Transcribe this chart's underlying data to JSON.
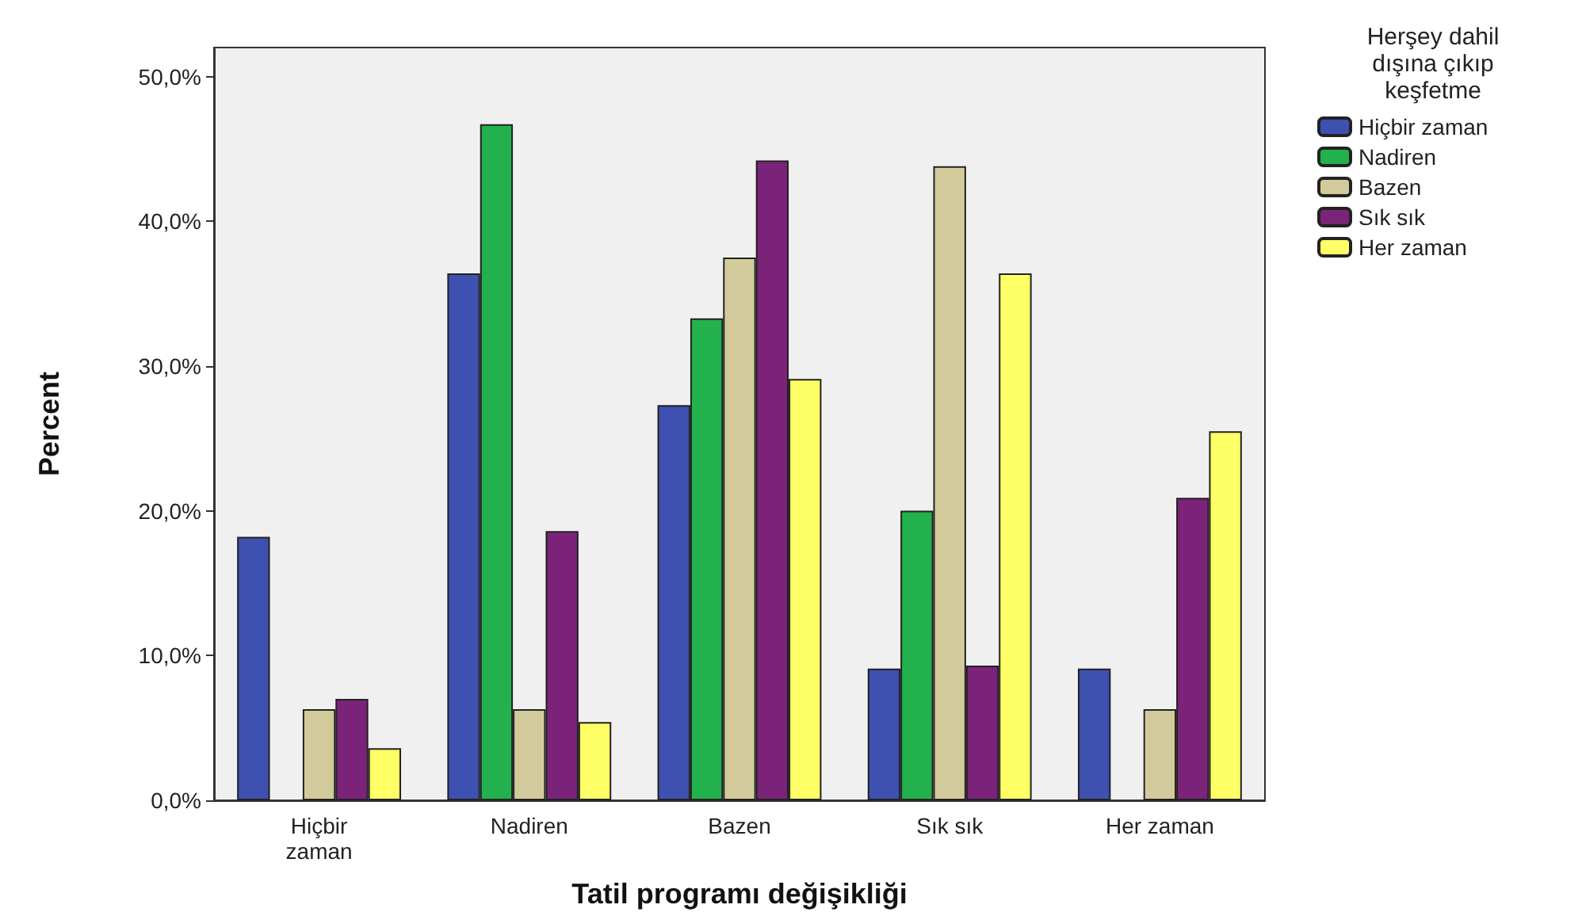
{
  "chart_data": {
    "type": "bar",
    "xlabel": "Tatil programı değişikliği",
    "ylabel": "Percent",
    "legend_title": "Herşey dahil\ndışına çıkıp\nkeşfetme",
    "categories": [
      "Hiçbir\nzaman",
      "Nadiren",
      "Bazen",
      "Sık sık",
      "Her zaman"
    ],
    "series": [
      {
        "name": "Hiçbir zaman",
        "color": "#3e51b0",
        "values": [
          18.2,
          36.4,
          27.3,
          9.1,
          9.1
        ]
      },
      {
        "name": "Nadiren",
        "color": "#22b14c",
        "values": [
          null,
          46.7,
          33.3,
          20.0,
          null
        ]
      },
      {
        "name": "Bazen",
        "color": "#d3ca9c",
        "values": [
          6.3,
          6.3,
          37.5,
          43.8,
          6.3
        ]
      },
      {
        "name": "Sık sık",
        "color": "#7b2378",
        "values": [
          7.0,
          18.6,
          44.2,
          9.3,
          20.9
        ]
      },
      {
        "name": "Her zaman",
        "color": "#ffff66",
        "values": [
          3.6,
          5.4,
          29.1,
          36.4,
          25.5
        ]
      }
    ],
    "ylim": [
      0,
      52
    ],
    "yticks": [
      {
        "value": 0,
        "label": "0,0%"
      },
      {
        "value": 10,
        "label": "10,0%"
      },
      {
        "value": 20,
        "label": "20,0%"
      },
      {
        "value": 30,
        "label": "30,0%"
      },
      {
        "value": 40,
        "label": "40,0%"
      },
      {
        "value": 50,
        "label": "50,0%"
      }
    ],
    "grid": false,
    "legend": "right"
  }
}
